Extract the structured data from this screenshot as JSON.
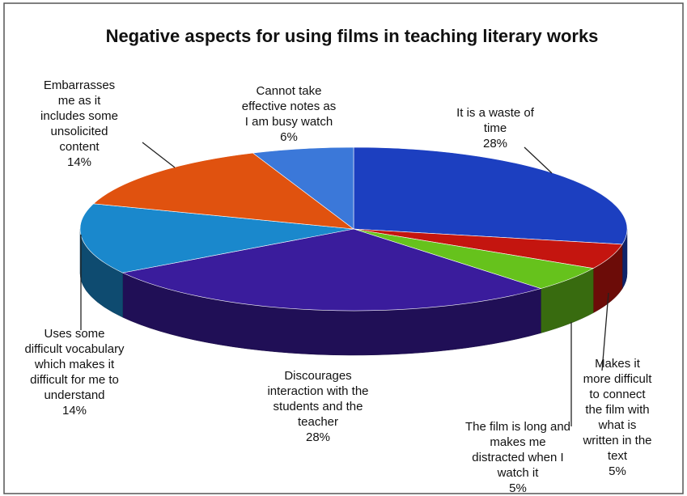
{
  "chart_data": {
    "type": "pie3d",
    "title": "Negative aspects for using films in teaching literary works",
    "categories": [
      "It is a waste of time",
      "Makes it more difficult to connect the film with what is written in the text",
      "The film is long and makes me distracted when I watch it",
      "Discourages interaction with the students and the teacher",
      "Uses some difficult vocabulary which makes it difficult for me to understand",
      "Embarrasses me as it includes some unsolicited content",
      "Cannot take effective notes as I am busy watch"
    ],
    "values": [
      28,
      5,
      5,
      28,
      14,
      14,
      6
    ],
    "value_labels": [
      "28%",
      "5%",
      "5%",
      "28%",
      "14%",
      "14%",
      "6%"
    ],
    "colors": [
      "#1c3fc0",
      "#c4150f",
      "#66c21c",
      "#3a1c9c",
      "#1a88cc",
      "#e0520f",
      "#3b78d9"
    ]
  }
}
